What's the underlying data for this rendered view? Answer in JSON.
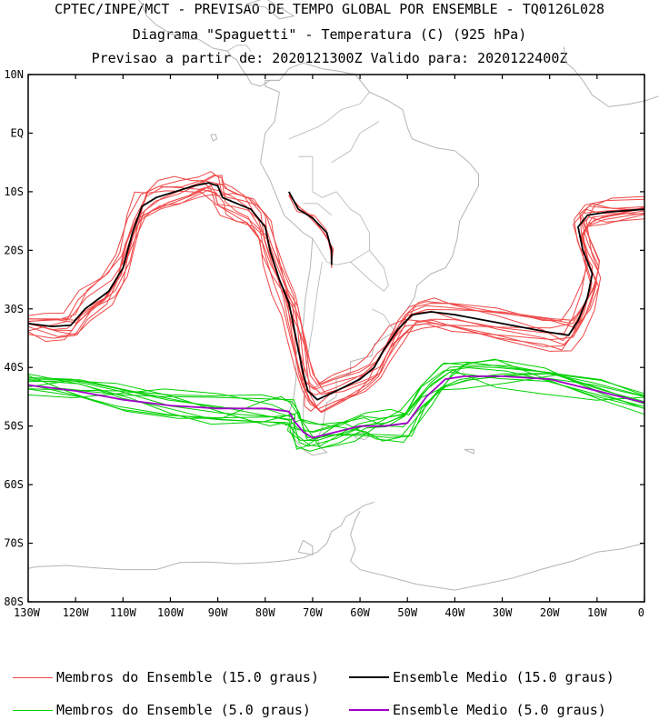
{
  "header": {
    "line1": "CPTEC/INPE/MCT - PREVISAO DE TEMPO GLOBAL POR ENSEMBLE - TQ0126L028",
    "line2": "Diagrama \"Spaguetti\" - Temperatura (C) (925 hPa)",
    "line3": "Previsao a partir de: 2020121300Z  Valido para: 2020122400Z"
  },
  "map": {
    "lat_ticks": [
      "10N",
      "EQ",
      "10S",
      "20S",
      "30S",
      "40S",
      "50S",
      "60S",
      "70S",
      "80S"
    ],
    "lon_ticks": [
      "130W",
      "120W",
      "110W",
      "100W",
      "90W",
      "80W",
      "70W",
      "60W",
      "50W",
      "40W",
      "30W",
      "20W",
      "10W",
      "0"
    ],
    "lon_range": [
      -130,
      0
    ],
    "lat_range": [
      -80,
      10
    ],
    "land_color": "#b4b4b4"
  },
  "series": {
    "members_15": {
      "color": "#f04848",
      "count": 12,
      "mean": [
        [
          -130,
          -32.5
        ],
        [
          -125,
          -33
        ],
        [
          -121,
          -32.8
        ],
        [
          -118,
          -30
        ],
        [
          -113,
          -27
        ],
        [
          -110,
          -23
        ],
        [
          -108,
          -17
        ],
        [
          -106,
          -12.5
        ],
        [
          -103,
          -11
        ],
        [
          -99,
          -10
        ],
        [
          -95,
          -9
        ],
        [
          -92,
          -8.5
        ],
        [
          -90,
          -9
        ],
        [
          -89,
          -11
        ],
        [
          -86,
          -12
        ],
        [
          -83,
          -13
        ],
        [
          -80,
          -16
        ],
        [
          -79,
          -20
        ],
        [
          -77,
          -25
        ],
        [
          -75,
          -29
        ],
        [
          -74,
          -33
        ],
        [
          -73,
          -37
        ],
        [
          -72,
          -41
        ],
        [
          -71,
          -44
        ],
        [
          -69,
          -45.5
        ],
        [
          -65,
          -44
        ],
        [
          -60,
          -42
        ],
        [
          -57,
          -40
        ],
        [
          -55,
          -37
        ],
        [
          -52,
          -33.5
        ],
        [
          -49,
          -31
        ],
        [
          -45,
          -30.5
        ],
        [
          -40,
          -31
        ],
        [
          -30,
          -32.5
        ],
        [
          -20,
          -34
        ],
        [
          -16,
          -34.5
        ],
        [
          -14,
          -32
        ],
        [
          -12,
          -28
        ],
        [
          -11,
          -24
        ],
        [
          -13,
          -20
        ],
        [
          -14,
          -16
        ],
        [
          -12,
          -14
        ],
        [
          -8,
          -13.5
        ],
        [
          0,
          -13
        ]
      ],
      "mean_coast": [
        [
          -75,
          -10
        ],
        [
          -73,
          -13
        ],
        [
          -70,
          -14.5
        ],
        [
          -67,
          -17
        ],
        [
          -66,
          -20
        ],
        [
          -66,
          -22.5
        ]
      ]
    },
    "members_5": {
      "color": "#00d000",
      "count": 12,
      "mean": [
        [
          -130,
          -43
        ],
        [
          -120,
          -44
        ],
        [
          -110,
          -45.5
        ],
        [
          -100,
          -46.5
        ],
        [
          -90,
          -47
        ],
        [
          -80,
          -47
        ],
        [
          -75,
          -47.5
        ],
        [
          -74,
          -49
        ],
        [
          -72,
          -51
        ],
        [
          -70,
          -52
        ],
        [
          -65,
          -51
        ],
        [
          -60,
          -50
        ],
        [
          -55,
          -50
        ],
        [
          -50,
          -49.5
        ],
        [
          -46,
          -45
        ],
        [
          -42,
          -42
        ],
        [
          -38,
          -41.5
        ],
        [
          -30,
          -41.5
        ],
        [
          -20,
          -42
        ],
        [
          -10,
          -44
        ],
        [
          0,
          -46
        ]
      ]
    },
    "mean_15_color": "#000000",
    "mean_5_color": "#a000c8"
  },
  "legend": {
    "members_15": "Membros do Ensemble (15.0 graus)",
    "mean_15": "Ensemble Medio (15.0 graus)",
    "members_5": "Membros do Ensemble (5.0 graus)",
    "mean_5": "Ensemble Medio (5.0 graus)"
  }
}
